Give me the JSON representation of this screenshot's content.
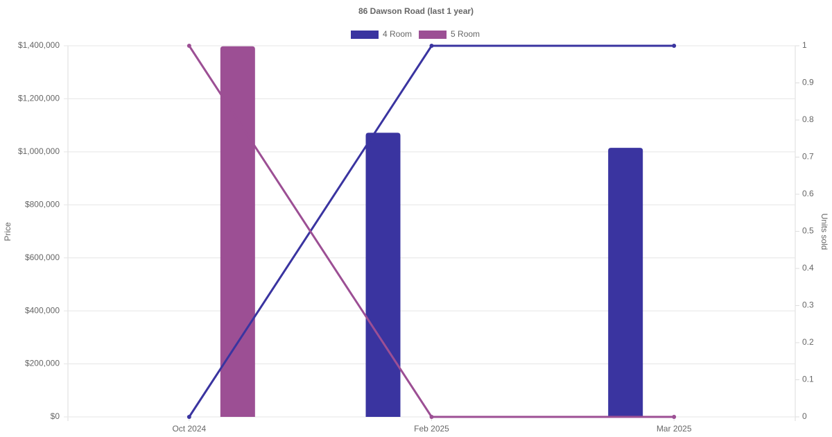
{
  "chart_data": {
    "type": "bar-line",
    "title": "86 Dawson Road (last 1 year)",
    "ylabel": "Price",
    "y2label": "Units sold",
    "categories": [
      "Oct 2024",
      "Feb 2025",
      "Mar 2025"
    ],
    "series": [
      {
        "name": "4 Room",
        "color": "#3a34a0",
        "values": [
          null,
          1072000,
          1015000
        ],
        "units_sold": [
          0,
          1,
          1
        ]
      },
      {
        "name": "5 Room",
        "color": "#9c4f94",
        "values": [
          1398000,
          null,
          null
        ],
        "units_sold": [
          1,
          0,
          0
        ]
      }
    ],
    "ylim": [
      0,
      1400000
    ],
    "yticks": [
      {
        "value": 0,
        "label": "$0"
      },
      {
        "value": 200000,
        "label": "$200,000"
      },
      {
        "value": 400000,
        "label": "$400,000"
      },
      {
        "value": 600000,
        "label": "$600,000"
      },
      {
        "value": 800000,
        "label": "$800,000"
      },
      {
        "value": 1000000,
        "label": "$1,000,000"
      },
      {
        "value": 1200000,
        "label": "$1,200,000"
      },
      {
        "value": 1400000,
        "label": "$1,400,000"
      }
    ],
    "y2lim": [
      0,
      1
    ],
    "y2ticks": [
      0,
      0.1,
      0.2,
      0.3,
      0.4,
      0.5,
      0.6,
      0.7,
      0.8,
      0.9,
      1
    ],
    "grid": true,
    "legend": "top"
  }
}
